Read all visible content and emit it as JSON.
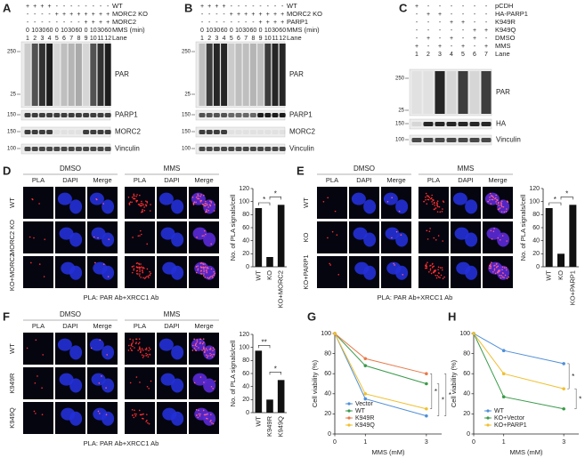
{
  "panel_labels": [
    "A",
    "B",
    "C",
    "D",
    "E",
    "F",
    "G",
    "H"
  ],
  "blots": [
    {
      "rows": [
        {
          "label": "WT",
          "marks": [
            "+",
            "+",
            "+",
            "+",
            "-",
            "-",
            "-",
            "-",
            "-",
            "-",
            "-",
            "-"
          ]
        },
        {
          "label": "MORC2 KO",
          "marks": [
            "-",
            "-",
            "-",
            "-",
            "+",
            "+",
            "+",
            "+",
            "+",
            "+",
            "+",
            "+"
          ]
        },
        {
          "label": "MORC2",
          "marks": [
            "-",
            "-",
            "-",
            "-",
            "-",
            "-",
            "-",
            "-",
            "+",
            "+",
            "+",
            "+"
          ]
        },
        {
          "label": "MMS (min)",
          "marks": [
            "0",
            "10",
            "30",
            "60",
            "0",
            "10",
            "30",
            "60",
            "0",
            "10",
            "30",
            "60"
          ]
        },
        {
          "label": "Lane",
          "marks": [
            "1",
            "2",
            "3",
            "4",
            "5",
            "6",
            "7",
            "8",
            "9",
            "10",
            "11",
            "12"
          ]
        }
      ],
      "bands": [
        {
          "label": "PAR",
          "markers": [
            "250",
            "25"
          ]
        },
        {
          "label": "PARP1",
          "markers": [
            "150"
          ]
        },
        {
          "label": "MORC2",
          "markers": [
            "150"
          ]
        },
        {
          "label": "Vinculin",
          "markers": [
            "100"
          ]
        }
      ]
    },
    {
      "rows": [
        {
          "label": "WT",
          "marks": [
            "+",
            "+",
            "+",
            "+",
            "-",
            "-",
            "-",
            "-",
            "-",
            "-",
            "-",
            "-"
          ]
        },
        {
          "label": "MORC2 KO",
          "marks": [
            "-",
            "-",
            "-",
            "-",
            "+",
            "+",
            "+",
            "+",
            "+",
            "+",
            "+",
            "+"
          ]
        },
        {
          "label": "PARP1",
          "marks": [
            "-",
            "-",
            "-",
            "-",
            "-",
            "-",
            "-",
            "-",
            "+",
            "+",
            "+",
            "+"
          ]
        },
        {
          "label": "MMS (min)",
          "marks": [
            "0",
            "10",
            "30",
            "60",
            "0",
            "10",
            "30",
            "60",
            "0",
            "10",
            "30",
            "60"
          ]
        },
        {
          "label": "Lane",
          "marks": [
            "1",
            "2",
            "3",
            "4",
            "5",
            "6",
            "7",
            "8",
            "9",
            "10",
            "11",
            "12"
          ]
        }
      ],
      "bands": [
        {
          "label": "PAR",
          "markers": [
            "250",
            "25"
          ]
        },
        {
          "label": "PARP1",
          "markers": [
            "150"
          ]
        },
        {
          "label": "MORC2",
          "markers": [
            "150"
          ]
        },
        {
          "label": "Vinculin",
          "markers": [
            "100"
          ]
        }
      ]
    },
    {
      "rows": [
        {
          "label": "pCDH",
          "marks": [
            "+",
            "-",
            "-",
            "-",
            "-",
            "-",
            "-"
          ]
        },
        {
          "label": "HA-PARP1",
          "marks": [
            "-",
            "+",
            "+",
            "-",
            "-",
            "-",
            "-"
          ]
        },
        {
          "label": "K949R",
          "marks": [
            "-",
            "-",
            "-",
            "+",
            "+",
            "-",
            "-"
          ]
        },
        {
          "label": "K949Q",
          "marks": [
            "-",
            "-",
            "-",
            "-",
            "-",
            "+",
            "+"
          ]
        },
        {
          "label": "DMSO",
          "marks": [
            "-",
            "+",
            "-",
            "+",
            "-",
            "+",
            "-"
          ]
        },
        {
          "label": "MMS",
          "marks": [
            "+",
            "-",
            "+",
            "-",
            "+",
            "-",
            "+"
          ]
        },
        {
          "label": "Lane",
          "marks": [
            "1",
            "2",
            "3",
            "4",
            "5",
            "6",
            "7"
          ]
        }
      ],
      "bands": [
        {
          "label": "PAR",
          "markers": [
            "250",
            "25"
          ]
        },
        {
          "label": "HA",
          "markers": [
            "150"
          ]
        },
        {
          "label": "Vinculin",
          "markers": [
            "100"
          ]
        }
      ]
    }
  ],
  "imaging": [
    {
      "conditions": [
        "DMSO",
        "MMS"
      ],
      "channels": [
        "PLA",
        "DAPI",
        "Merge"
      ],
      "rows": [
        "WT",
        "MORC2 KO",
        "KO+MORC2"
      ],
      "caption": "PLA: PAR Ab+XRCC1 Ab"
    },
    {
      "conditions": [
        "DMSO",
        "MMS"
      ],
      "channels": [
        "PLA",
        "DAPI",
        "Merge"
      ],
      "rows": [
        "WT",
        "KO",
        "KO+PARP1"
      ],
      "caption": "PLA: PAR Ab+XRCC1 Ab"
    },
    {
      "conditions": [
        "DMSO",
        "MMS"
      ],
      "channels": [
        "PLA",
        "DAPI",
        "Merge"
      ],
      "rows": [
        "WT",
        "K949R",
        "K949Q"
      ],
      "caption": "PLA: PAR Ab+XRCC1 Ab"
    }
  ],
  "chart_data": [
    {
      "type": "bar",
      "ylabel": "No. of PLA signals/cell",
      "categories": [
        "WT",
        "KO",
        "KO+MORC2"
      ],
      "values": [
        90,
        15,
        95
      ],
      "color": "#111111",
      "ylim": [
        0,
        120
      ],
      "yticks": [
        0,
        20,
        40,
        60,
        80,
        100,
        120
      ],
      "annotations": [
        "*",
        "*"
      ]
    },
    {
      "type": "bar",
      "ylabel": "No. of PLA signals/cell",
      "categories": [
        "WT",
        "KO",
        "KO+PARP1"
      ],
      "values": [
        90,
        20,
        95
      ],
      "color": "#111111",
      "ylim": [
        0,
        120
      ],
      "yticks": [
        0,
        20,
        40,
        60,
        80,
        100,
        120
      ],
      "annotations": [
        "*",
        "*"
      ]
    },
    {
      "type": "bar",
      "ylabel": "No. of PLA signals/cell",
      "categories": [
        "WT",
        "K949R",
        "K949Q"
      ],
      "values": [
        95,
        20,
        50
      ],
      "color": "#111111",
      "ylim": [
        0,
        120
      ],
      "yticks": [
        0,
        20,
        40,
        60,
        80,
        100,
        120
      ],
      "annotations": [
        "**",
        "*"
      ]
    },
    {
      "type": "line",
      "xlabel": "MMS (mM)",
      "ylabel": "Cell viability (%)",
      "x": [
        0,
        1,
        3
      ],
      "xlim": [
        0,
        3.5
      ],
      "xticks": [
        0,
        1,
        3
      ],
      "ylim": [
        0,
        100
      ],
      "yticks": [
        0,
        20,
        40,
        60,
        80,
        100
      ],
      "legend": "lower left",
      "series": [
        {
          "name": "Vector",
          "color": "#4f8fd8",
          "values": [
            100,
            35,
            18
          ]
        },
        {
          "name": "WT",
          "color": "#3a9a4a",
          "values": [
            100,
            68,
            50
          ]
        },
        {
          "name": "K949R",
          "color": "#e8794a",
          "values": [
            100,
            75,
            60
          ]
        },
        {
          "name": "K949Q",
          "color": "#f0c030",
          "values": [
            100,
            40,
            25
          ]
        }
      ],
      "annotations": [
        "*",
        "*",
        "*"
      ]
    },
    {
      "type": "line",
      "xlabel": "MMS (mM)",
      "ylabel": "Cell viability (%)",
      "x": [
        0,
        1,
        3
      ],
      "xlim": [
        0,
        3.5
      ],
      "xticks": [
        0,
        1,
        3
      ],
      "ylim": [
        0,
        100
      ],
      "yticks": [
        0,
        20,
        40,
        60,
        80,
        100
      ],
      "legend": "lower left",
      "series": [
        {
          "name": "WT",
          "color": "#4f8fd8",
          "values": [
            100,
            83,
            70
          ]
        },
        {
          "name": "KO+Vector",
          "color": "#3a9a4a",
          "values": [
            100,
            37,
            25
          ]
        },
        {
          "name": "KO+PARP1",
          "color": "#f0c030",
          "values": [
            100,
            60,
            45
          ]
        }
      ],
      "annotations": [
        "*",
        "*"
      ]
    }
  ]
}
